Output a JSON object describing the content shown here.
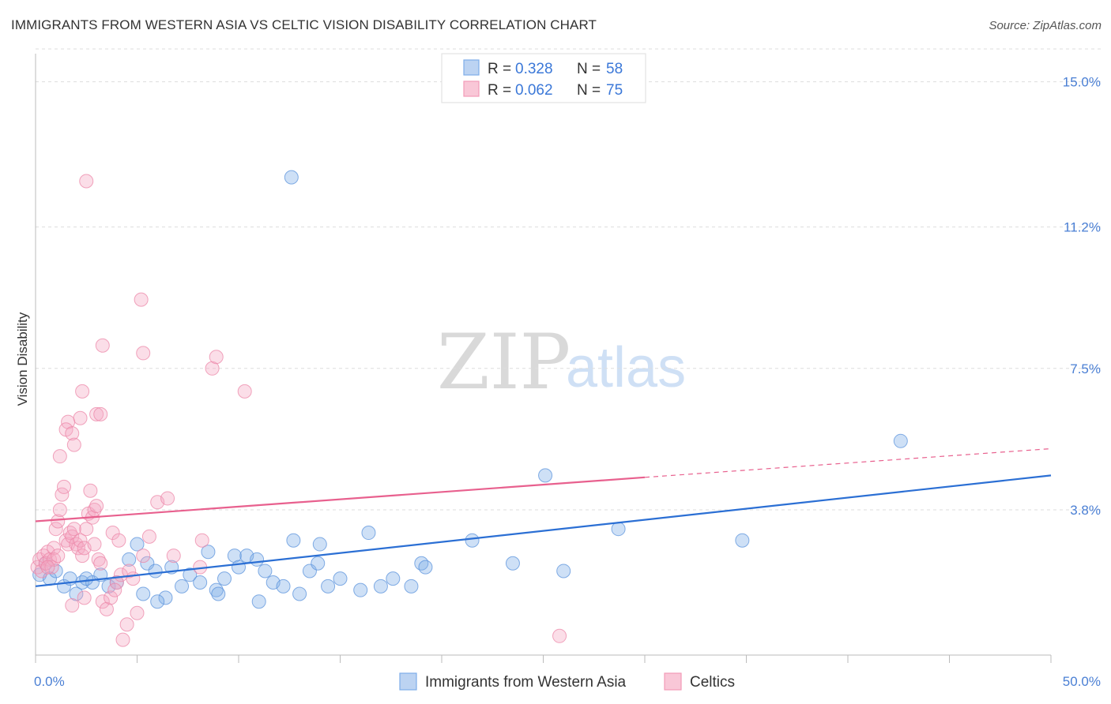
{
  "header": {
    "title": "IMMIGRANTS FROM WESTERN ASIA VS CELTIC VISION DISABILITY CORRELATION CHART",
    "source": "Source: ZipAtlas.com"
  },
  "watermark": {
    "zip": "ZIP",
    "atlas": "atlas"
  },
  "chart_data": {
    "type": "scatter",
    "ylabel": "Vision Disability",
    "xlim": [
      0,
      50
    ],
    "ylim": [
      0,
      15.9
    ],
    "x_tick_labels": {
      "left": "0.0%",
      "right": "50.0%"
    },
    "y_ticks": [
      {
        "value": 3.8,
        "label": "3.8%"
      },
      {
        "value": 7.5,
        "label": "7.5%"
      },
      {
        "value": 11.2,
        "label": "11.2%"
      },
      {
        "value": 15.0,
        "label": "15.0%"
      }
    ],
    "legend": {
      "r_label": "R =",
      "n_label": "N =",
      "entries": [
        {
          "r": "0.328",
          "n": "58",
          "color": "#7eaee8"
        },
        {
          "r": "0.062",
          "n": "75",
          "color": "#f29bb8"
        }
      ]
    },
    "series": [
      {
        "name": "Immigrants from Western Asia",
        "color": "#7eaee8",
        "stroke": "#5b93dc",
        "trend": {
          "x0": 0,
          "y0": 1.8,
          "x1": 50,
          "y1": 4.7,
          "color": "#2b6fd4"
        },
        "points": [
          [
            0.2,
            2.1
          ],
          [
            0.5,
            2.4
          ],
          [
            0.7,
            2.0
          ],
          [
            1.0,
            2.2
          ],
          [
            1.4,
            1.8
          ],
          [
            1.7,
            2.0
          ],
          [
            2.0,
            1.6
          ],
          [
            2.3,
            1.9
          ],
          [
            2.8,
            1.9
          ],
          [
            3.2,
            2.1
          ],
          [
            3.6,
            1.8
          ],
          [
            4.0,
            1.9
          ],
          [
            4.6,
            2.5
          ],
          [
            5.0,
            2.9
          ],
          [
            5.5,
            2.4
          ],
          [
            5.9,
            2.2
          ],
          [
            6.4,
            1.5
          ],
          [
            6.7,
            2.3
          ],
          [
            7.2,
            1.8
          ],
          [
            7.6,
            2.1
          ],
          [
            8.1,
            1.9
          ],
          [
            8.5,
            2.7
          ],
          [
            8.9,
            1.7
          ],
          [
            9.3,
            2.0
          ],
          [
            9.8,
            2.6
          ],
          [
            10.4,
            2.6
          ],
          [
            10.9,
            2.5
          ],
          [
            11.3,
            2.2
          ],
          [
            11.7,
            1.9
          ],
          [
            12.2,
            1.8
          ],
          [
            12.7,
            3.0
          ],
          [
            13.0,
            1.6
          ],
          [
            13.5,
            2.2
          ],
          [
            13.9,
            2.4
          ],
          [
            14.4,
            1.8
          ],
          [
            15.0,
            2.0
          ],
          [
            16.0,
            1.7
          ],
          [
            16.4,
            3.2
          ],
          [
            17.0,
            1.8
          ],
          [
            17.6,
            2.0
          ],
          [
            19.0,
            2.4
          ],
          [
            21.5,
            3.0
          ],
          [
            23.5,
            2.4
          ],
          [
            25.1,
            4.7
          ],
          [
            26.0,
            2.2
          ],
          [
            28.7,
            3.3
          ],
          [
            34.8,
            3.0
          ],
          [
            42.6,
            5.6
          ],
          [
            12.6,
            12.5
          ],
          [
            2.5,
            2.0
          ],
          [
            6.0,
            1.4
          ],
          [
            9.0,
            1.6
          ],
          [
            11.0,
            1.4
          ],
          [
            14.0,
            2.9
          ],
          [
            18.5,
            1.8
          ],
          [
            19.2,
            2.3
          ],
          [
            5.3,
            1.6
          ],
          [
            10.0,
            2.3
          ]
        ]
      },
      {
        "name": "Celtics",
        "color": "#f4a9c2",
        "stroke": "#ec87a8",
        "trend": {
          "x0": 0,
          "y0": 3.5,
          "x1": 30,
          "y1": 4.65,
          "dash_to": {
            "x": 50,
            "y": 5.4
          },
          "color": "#e8608e"
        },
        "points": [
          [
            0.1,
            2.3
          ],
          [
            0.2,
            2.5
          ],
          [
            0.3,
            2.2
          ],
          [
            0.4,
            2.6
          ],
          [
            0.5,
            2.4
          ],
          [
            0.6,
            2.7
          ],
          [
            0.7,
            2.5
          ],
          [
            0.8,
            2.3
          ],
          [
            0.9,
            2.8
          ],
          [
            1.0,
            3.3
          ],
          [
            1.1,
            3.5
          ],
          [
            1.2,
            3.8
          ],
          [
            1.3,
            4.2
          ],
          [
            1.4,
            4.4
          ],
          [
            1.5,
            3.0
          ],
          [
            1.6,
            2.9
          ],
          [
            1.7,
            3.2
          ],
          [
            1.8,
            3.1
          ],
          [
            1.9,
            3.3
          ],
          [
            2.0,
            2.9
          ],
          [
            2.1,
            2.8
          ],
          [
            2.2,
            3.0
          ],
          [
            2.3,
            2.6
          ],
          [
            2.4,
            2.8
          ],
          [
            2.5,
            3.3
          ],
          [
            2.6,
            3.7
          ],
          [
            2.7,
            4.3
          ],
          [
            2.8,
            3.6
          ],
          [
            2.9,
            3.8
          ],
          [
            3.0,
            3.9
          ],
          [
            3.1,
            2.5
          ],
          [
            3.2,
            2.4
          ],
          [
            3.3,
            1.4
          ],
          [
            3.5,
            1.2
          ],
          [
            3.7,
            1.5
          ],
          [
            4.0,
            1.9
          ],
          [
            4.2,
            2.1
          ],
          [
            4.3,
            0.4
          ],
          [
            4.5,
            0.8
          ],
          [
            4.8,
            2.0
          ],
          [
            5.0,
            1.1
          ],
          [
            5.3,
            2.6
          ],
          [
            5.6,
            3.1
          ],
          [
            6.0,
            4.0
          ],
          [
            6.5,
            4.1
          ],
          [
            2.5,
            12.4
          ],
          [
            5.2,
            9.3
          ],
          [
            3.3,
            8.1
          ],
          [
            5.3,
            7.9
          ],
          [
            8.7,
            7.5
          ],
          [
            8.9,
            7.8
          ],
          [
            10.3,
            6.9
          ],
          [
            2.3,
            6.9
          ],
          [
            3.0,
            6.3
          ],
          [
            3.2,
            6.3
          ],
          [
            2.2,
            6.2
          ],
          [
            1.6,
            6.1
          ],
          [
            1.5,
            5.9
          ],
          [
            1.8,
            5.8
          ],
          [
            1.9,
            5.5
          ],
          [
            1.2,
            5.2
          ],
          [
            2.9,
            2.9
          ],
          [
            3.8,
            3.2
          ],
          [
            4.1,
            3.0
          ],
          [
            8.1,
            2.3
          ],
          [
            8.2,
            3.0
          ],
          [
            25.8,
            0.5
          ],
          [
            0.9,
            2.5
          ],
          [
            0.6,
            2.3
          ],
          [
            1.1,
            2.6
          ],
          [
            1.8,
            1.3
          ],
          [
            2.4,
            1.5
          ],
          [
            3.9,
            1.7
          ],
          [
            6.8,
            2.6
          ],
          [
            4.6,
            2.2
          ]
        ]
      }
    ]
  }
}
